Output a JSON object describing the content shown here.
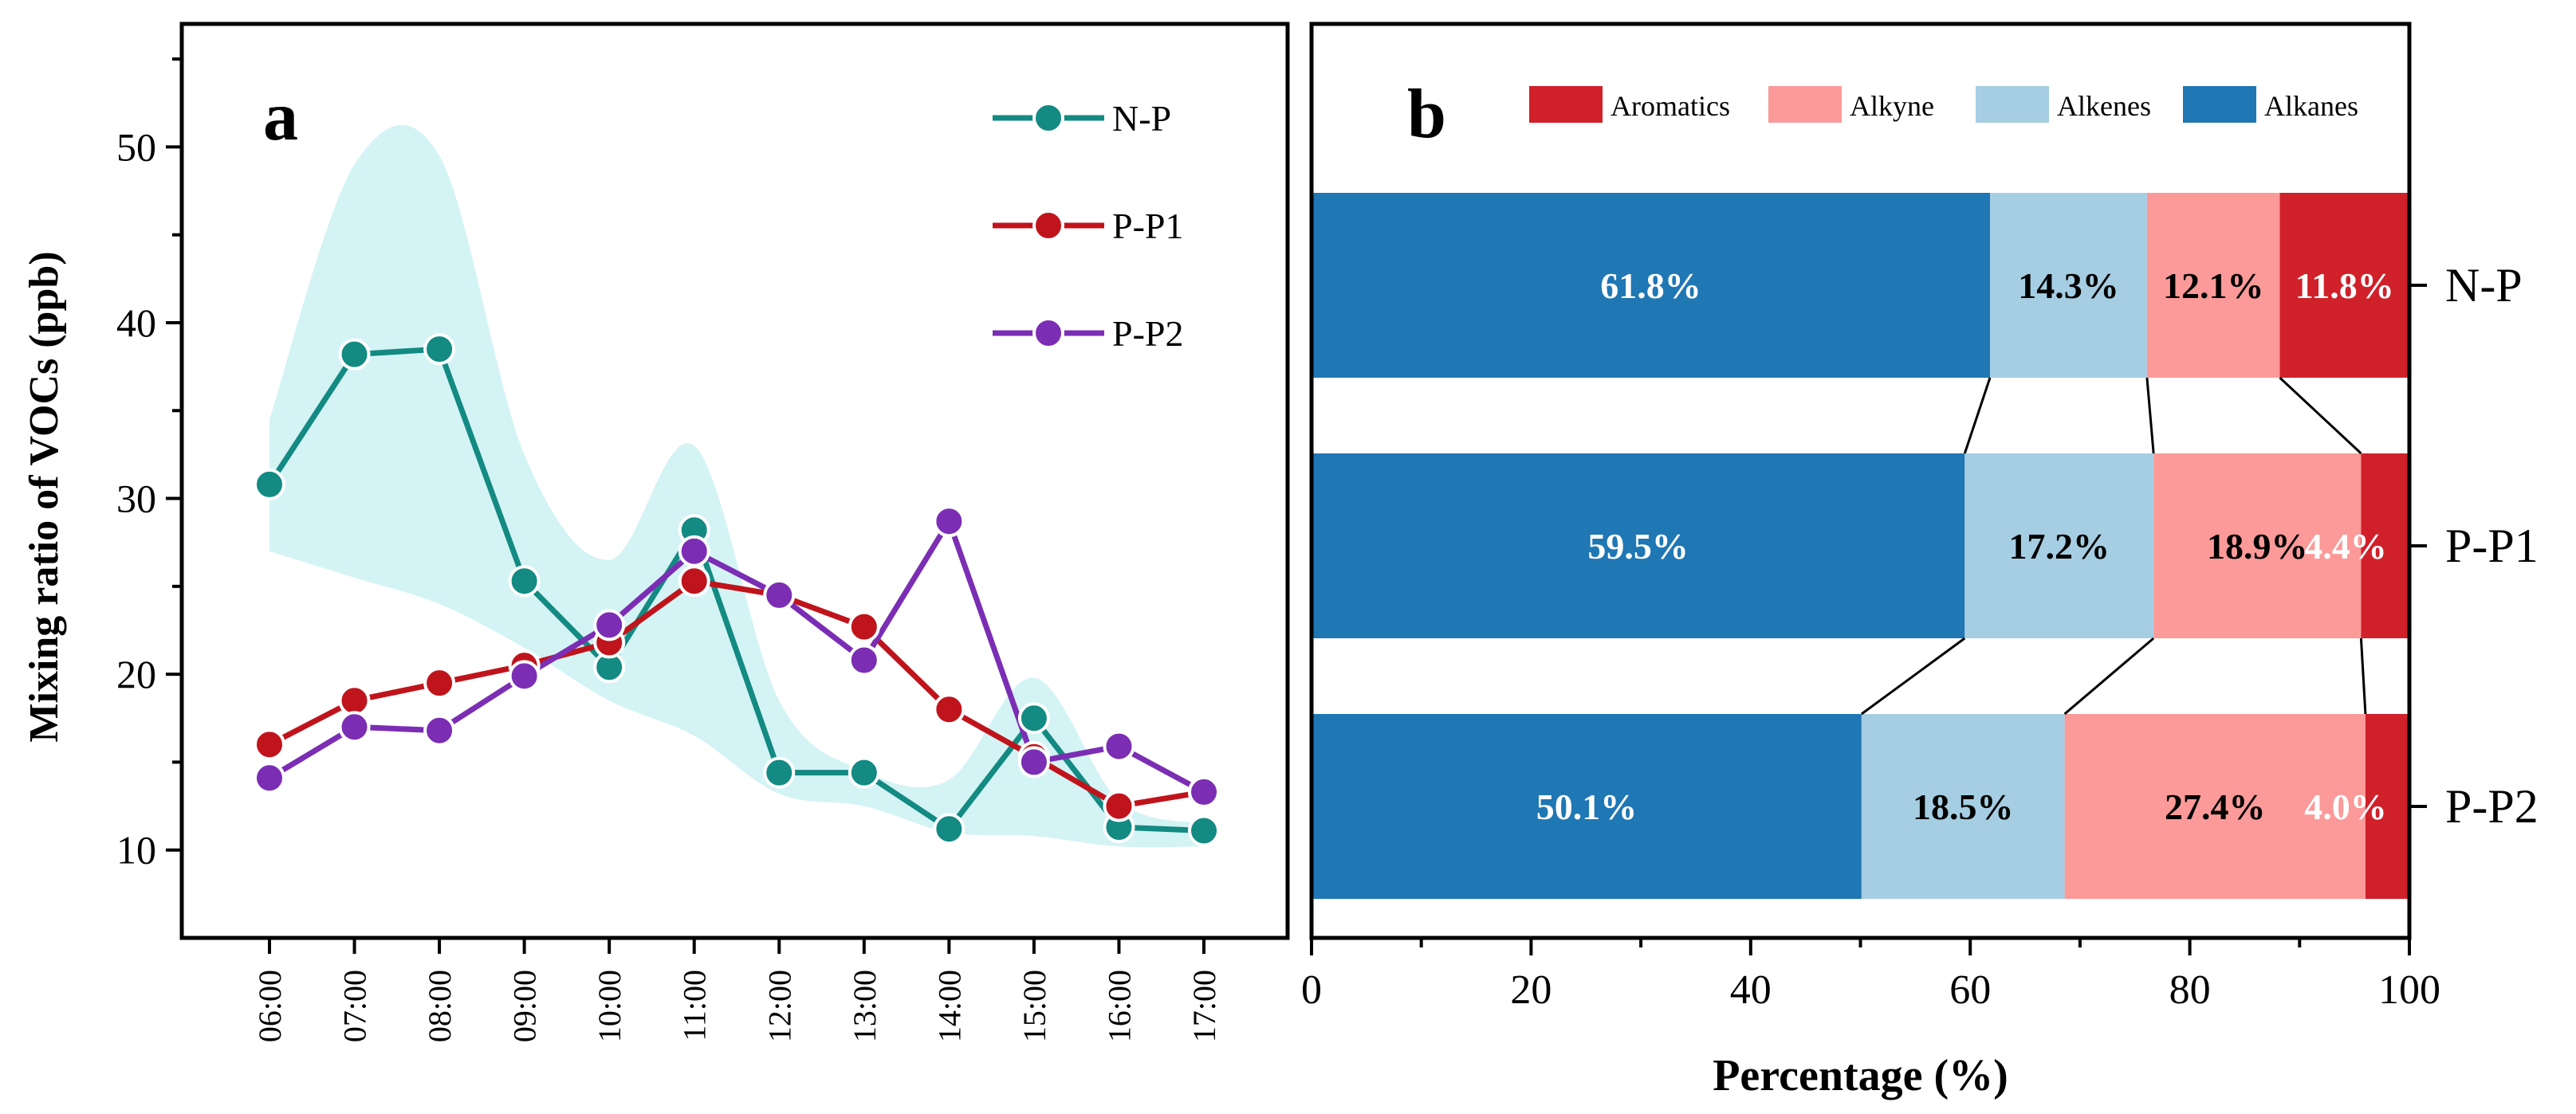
{
  "chart_data": [
    {
      "panel_label": "a",
      "type": "line",
      "ylabel": "Mixing ratio of VOCs (ppb)",
      "xlabel": "",
      "ylim": [
        5,
        57
      ],
      "yticks": [
        10,
        20,
        30,
        40,
        50
      ],
      "categories": [
        "06:00",
        "07:00",
        "08:00",
        "09:00",
        "10:00",
        "11:00",
        "12:00",
        "13:00",
        "14:00",
        "15:00",
        "16:00",
        "17:00"
      ],
      "band": {
        "color": "#d4f3f5",
        "upper": [
          34.5,
          49.0,
          49.5,
          32.5,
          26.5,
          33.0,
          18.5,
          14.5,
          14.0,
          19.8,
          12.8,
          11.5
        ],
        "lower": [
          27.0,
          25.5,
          24.0,
          21.5,
          18.5,
          16.5,
          13.2,
          12.5,
          11.0,
          10.8,
          10.2,
          10.2
        ]
      },
      "series": [
        {
          "name": "N-P",
          "color": "#138a82",
          "values": [
            30.8,
            38.2,
            38.5,
            25.3,
            20.4,
            28.2,
            14.4,
            14.4,
            11.2,
            17.5,
            11.3,
            11.1
          ]
        },
        {
          "name": "P-P1",
          "color": "#c0141c",
          "values": [
            16.0,
            18.5,
            19.5,
            20.5,
            21.8,
            25.3,
            24.5,
            22.7,
            18.0,
            15.3,
            12.5,
            13.3
          ]
        },
        {
          "name": "P-P2",
          "color": "#7b2eb4",
          "values": [
            14.1,
            17.0,
            16.8,
            19.9,
            22.8,
            27.0,
            24.5,
            20.8,
            28.7,
            15.0,
            15.9,
            13.3
          ]
        }
      ],
      "legend": "top-right"
    },
    {
      "panel_label": "b",
      "type": "bar",
      "orientation": "horizontal-stacked",
      "xlabel": "Percentage (%)",
      "xlim": [
        0,
        100
      ],
      "xticks": [
        0,
        20,
        40,
        60,
        80,
        100
      ],
      "categories": [
        "N-P",
        "P-P1",
        "P-P2"
      ],
      "series": [
        {
          "name": "Alkanes",
          "color": "#1f77b4",
          "text_color": "#ffffff",
          "values": [
            61.8,
            59.5,
            50.1
          ],
          "labels": [
            "61.8%",
            "59.5%",
            "50.1%"
          ]
        },
        {
          "name": "Alkenes",
          "color": "#a6cee3",
          "text_color": "#000000",
          "values": [
            14.3,
            17.2,
            18.5
          ],
          "labels": [
            "14.3%",
            "17.2%",
            "18.5%"
          ]
        },
        {
          "name": "Alkyne",
          "color": "#fb9a99",
          "text_color": "#000000",
          "values": [
            12.1,
            18.9,
            27.4
          ],
          "labels": [
            "12.1%",
            "18.9%",
            "27.4%"
          ]
        },
        {
          "name": "Aromatics",
          "color": "#d0202a",
          "text_color": "#ffffff",
          "values": [
            11.8,
            4.4,
            4.0
          ],
          "labels": [
            "11.8%",
            "4.4%",
            "4.0%"
          ]
        }
      ],
      "legend_order": [
        "Aromatics",
        "Alkyne",
        "Alkenes",
        "Alkanes"
      ],
      "legend": "top"
    }
  ]
}
